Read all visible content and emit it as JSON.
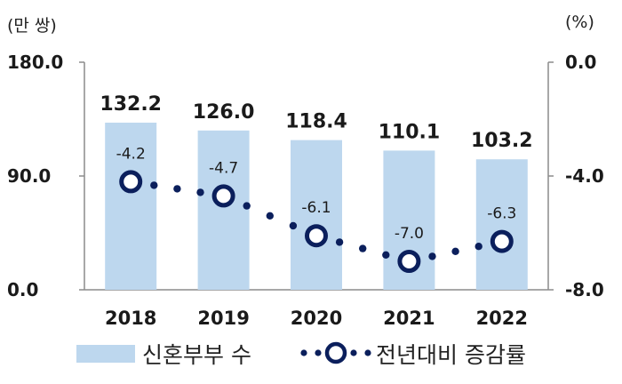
{
  "chart_data": {
    "type": "bar+line",
    "categories": [
      "2018",
      "2019",
      "2020",
      "2021",
      "2022"
    ],
    "series": [
      {
        "name": "신혼부부 수",
        "type": "bar",
        "axis": "left",
        "values": [
          132.2,
          126.0,
          118.4,
          110.1,
          103.2
        ],
        "labels": [
          "132.2",
          "126.0",
          "118.4",
          "110.1",
          "103.2"
        ]
      },
      {
        "name": "전년대비 증감률",
        "type": "line",
        "axis": "right",
        "values": [
          -4.2,
          -4.7,
          -6.1,
          -7.0,
          -6.3
        ],
        "labels": [
          "-4.2",
          "-4.7",
          "-6.1",
          "-7.0",
          "-6.3"
        ]
      }
    ],
    "y_left": {
      "unit": "(만 쌍)",
      "ylim": [
        0,
        180
      ],
      "ticks": [
        "180.0",
        "90.0",
        "0.0"
      ]
    },
    "y_right": {
      "unit": "(%)",
      "ylim": [
        -8,
        0
      ],
      "ticks": [
        "0.0",
        "-4.0",
        "-8.0"
      ]
    },
    "grid": false,
    "legend": "bottom",
    "colors": {
      "bar": "#bdd7ee",
      "line": "#0b1f5c",
      "marker_fill": "#ffffff",
      "axis": "#8c8c8c"
    }
  }
}
